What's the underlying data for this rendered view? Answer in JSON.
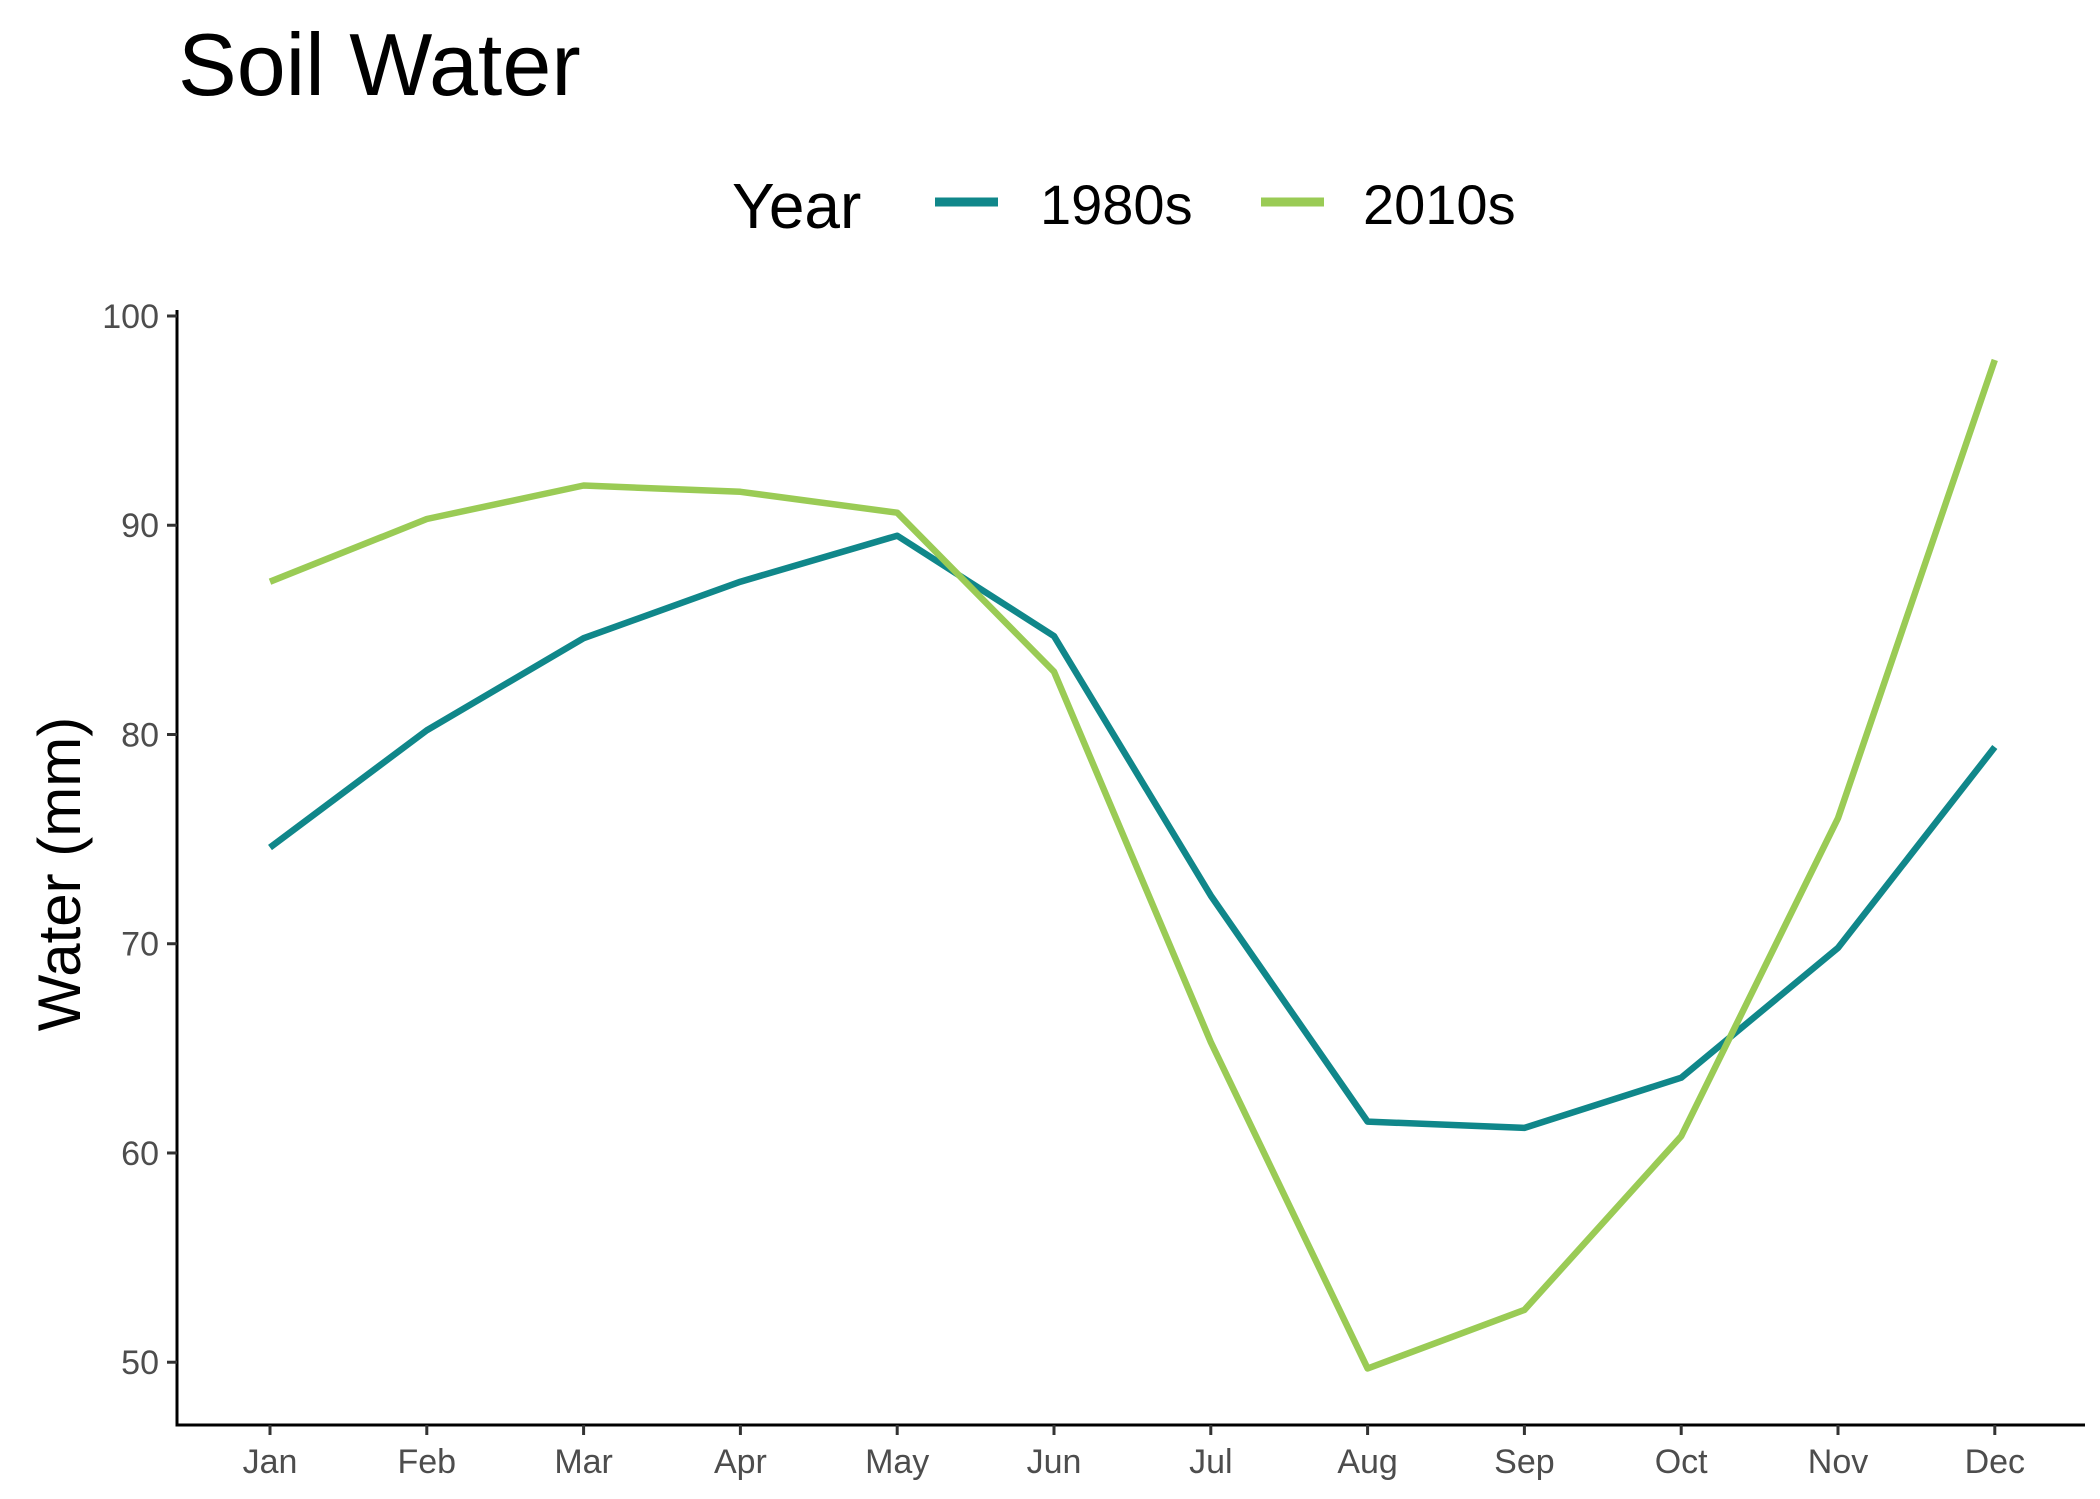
{
  "chart_data": {
    "type": "line",
    "title": "Soil Water",
    "xlabel": "",
    "ylabel": "Water (mm)",
    "legend_title": "Year",
    "legend_position": "top",
    "grid": false,
    "ylim": [
      47,
      100
    ],
    "yticks": [
      50,
      60,
      70,
      80,
      90,
      100
    ],
    "categories": [
      "Jan",
      "Feb",
      "Mar",
      "Apr",
      "May",
      "Jun",
      "Jul",
      "Aug",
      "Sep",
      "Oct",
      "Nov",
      "Dec"
    ],
    "series": [
      {
        "name": "1980s",
        "color": "#10878A",
        "values": [
          74.6,
          80.2,
          84.6,
          87.3,
          89.5,
          84.7,
          72.3,
          61.5,
          61.2,
          63.6,
          69.8,
          79.4
        ]
      },
      {
        "name": "2010s",
        "color": "#9ACB55",
        "values": [
          87.3,
          90.3,
          91.9,
          91.6,
          90.6,
          83.0,
          65.3,
          49.7,
          52.5,
          60.8,
          76.0,
          97.9
        ]
      }
    ]
  }
}
